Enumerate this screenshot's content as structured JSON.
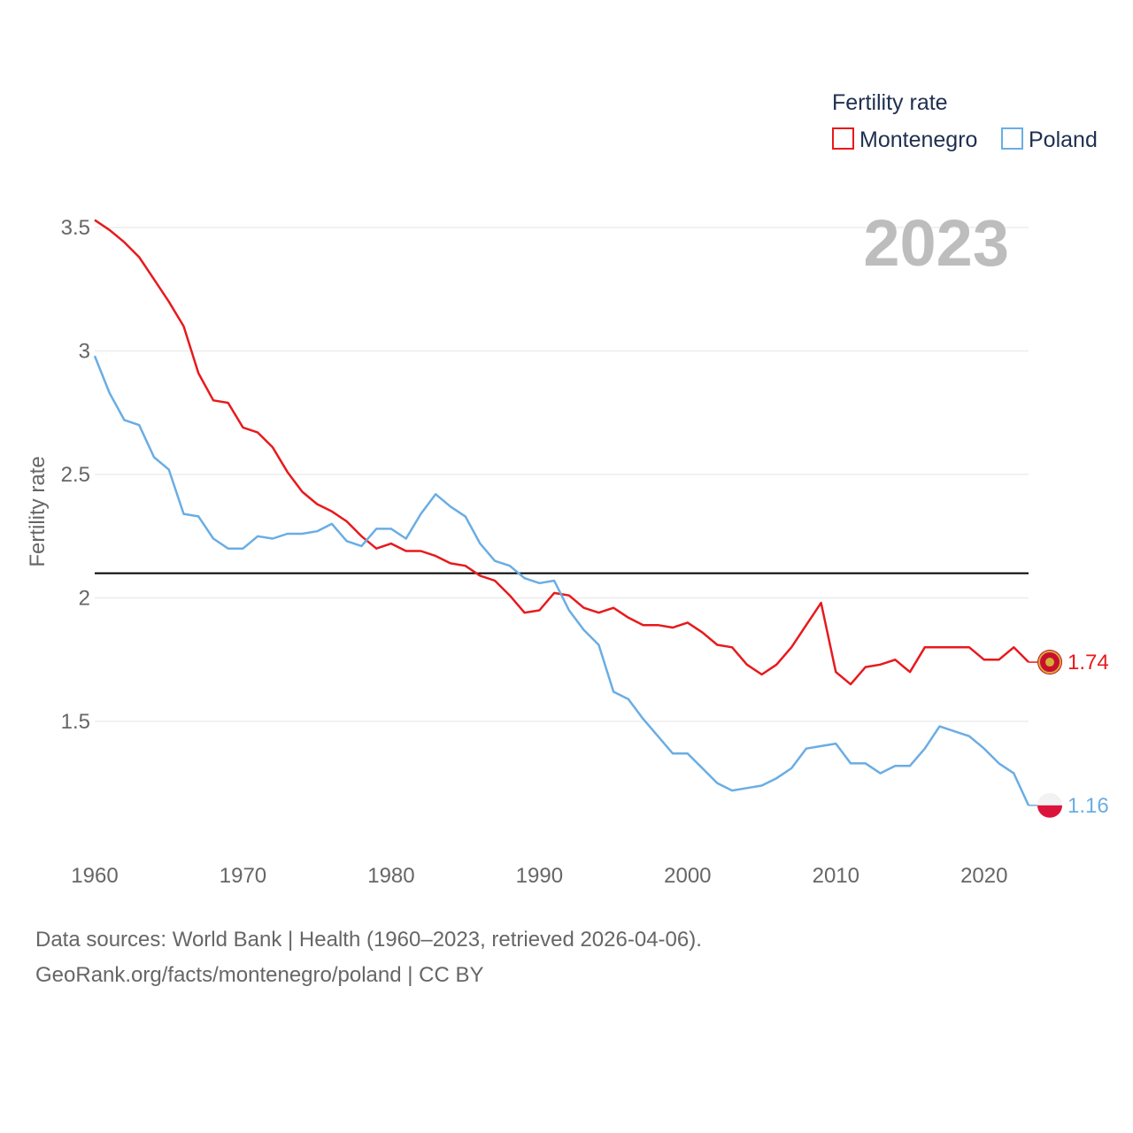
{
  "legend": {
    "title": "Fertility rate"
  },
  "year_label": "2023",
  "footer": {
    "line1": "Data sources: World Bank | Health (1960–2023, retrieved 2026-04-06).",
    "line2": "GeoRank.org/facts/montenegro/poland | CC BY"
  },
  "chart_data": {
    "type": "line",
    "title": "",
    "ylabel": "Fertility rate",
    "xlabel": "",
    "x_ticks": [
      "1960",
      "1970",
      "1980",
      "1990",
      "2000",
      "2010",
      "2020"
    ],
    "y_ticks": [
      "1.5",
      "2",
      "2.5",
      "3",
      "3.5"
    ],
    "xlim": [
      1960,
      2023
    ],
    "ylim": [
      1.0,
      3.6
    ],
    "reference_line": {
      "value": 2.1,
      "color": "#000000"
    },
    "x": [
      1960,
      1961,
      1962,
      1963,
      1964,
      1965,
      1966,
      1967,
      1968,
      1969,
      1970,
      1971,
      1972,
      1973,
      1974,
      1975,
      1976,
      1977,
      1978,
      1979,
      1980,
      1981,
      1982,
      1983,
      1984,
      1985,
      1986,
      1987,
      1988,
      1989,
      1990,
      1991,
      1992,
      1993,
      1994,
      1995,
      1996,
      1997,
      1998,
      1999,
      2000,
      2001,
      2002,
      2003,
      2004,
      2005,
      2006,
      2007,
      2008,
      2009,
      2010,
      2011,
      2012,
      2013,
      2014,
      2015,
      2016,
      2017,
      2018,
      2019,
      2020,
      2021,
      2022,
      2023
    ],
    "series": [
      {
        "name": "Montenegro",
        "color": "#e8191c",
        "end_label": "1.74",
        "flag_icon": "montenegro-flag-icon",
        "values": [
          3.53,
          3.49,
          3.44,
          3.38,
          3.29,
          3.2,
          3.1,
          2.91,
          2.8,
          2.79,
          2.69,
          2.67,
          2.61,
          2.51,
          2.43,
          2.38,
          2.35,
          2.31,
          2.25,
          2.2,
          2.22,
          2.19,
          2.19,
          2.17,
          2.14,
          2.13,
          2.09,
          2.07,
          2.01,
          1.94,
          1.95,
          2.02,
          2.01,
          1.96,
          1.94,
          1.96,
          1.92,
          1.89,
          1.89,
          1.88,
          1.9,
          1.86,
          1.81,
          1.8,
          1.73,
          1.69,
          1.73,
          1.8,
          1.89,
          1.98,
          1.7,
          1.65,
          1.72,
          1.73,
          1.75,
          1.7,
          1.8,
          1.8,
          1.8,
          1.8,
          1.75,
          1.75,
          1.8,
          1.74
        ]
      },
      {
        "name": "Poland",
        "color": "#6aade4",
        "end_label": "1.16",
        "flag_icon": "poland-flag-icon",
        "values": [
          2.98,
          2.83,
          2.72,
          2.7,
          2.57,
          2.52,
          2.34,
          2.33,
          2.24,
          2.2,
          2.2,
          2.25,
          2.24,
          2.26,
          2.26,
          2.27,
          2.3,
          2.23,
          2.21,
          2.28,
          2.28,
          2.24,
          2.34,
          2.42,
          2.37,
          2.33,
          2.22,
          2.15,
          2.13,
          2.08,
          2.06,
          2.07,
          1.95,
          1.87,
          1.81,
          1.62,
          1.59,
          1.51,
          1.44,
          1.37,
          1.37,
          1.31,
          1.25,
          1.22,
          1.23,
          1.24,
          1.27,
          1.31,
          1.39,
          1.4,
          1.41,
          1.33,
          1.33,
          1.29,
          1.32,
          1.32,
          1.39,
          1.48,
          1.46,
          1.44,
          1.39,
          1.33,
          1.29,
          1.16
        ]
      }
    ]
  }
}
